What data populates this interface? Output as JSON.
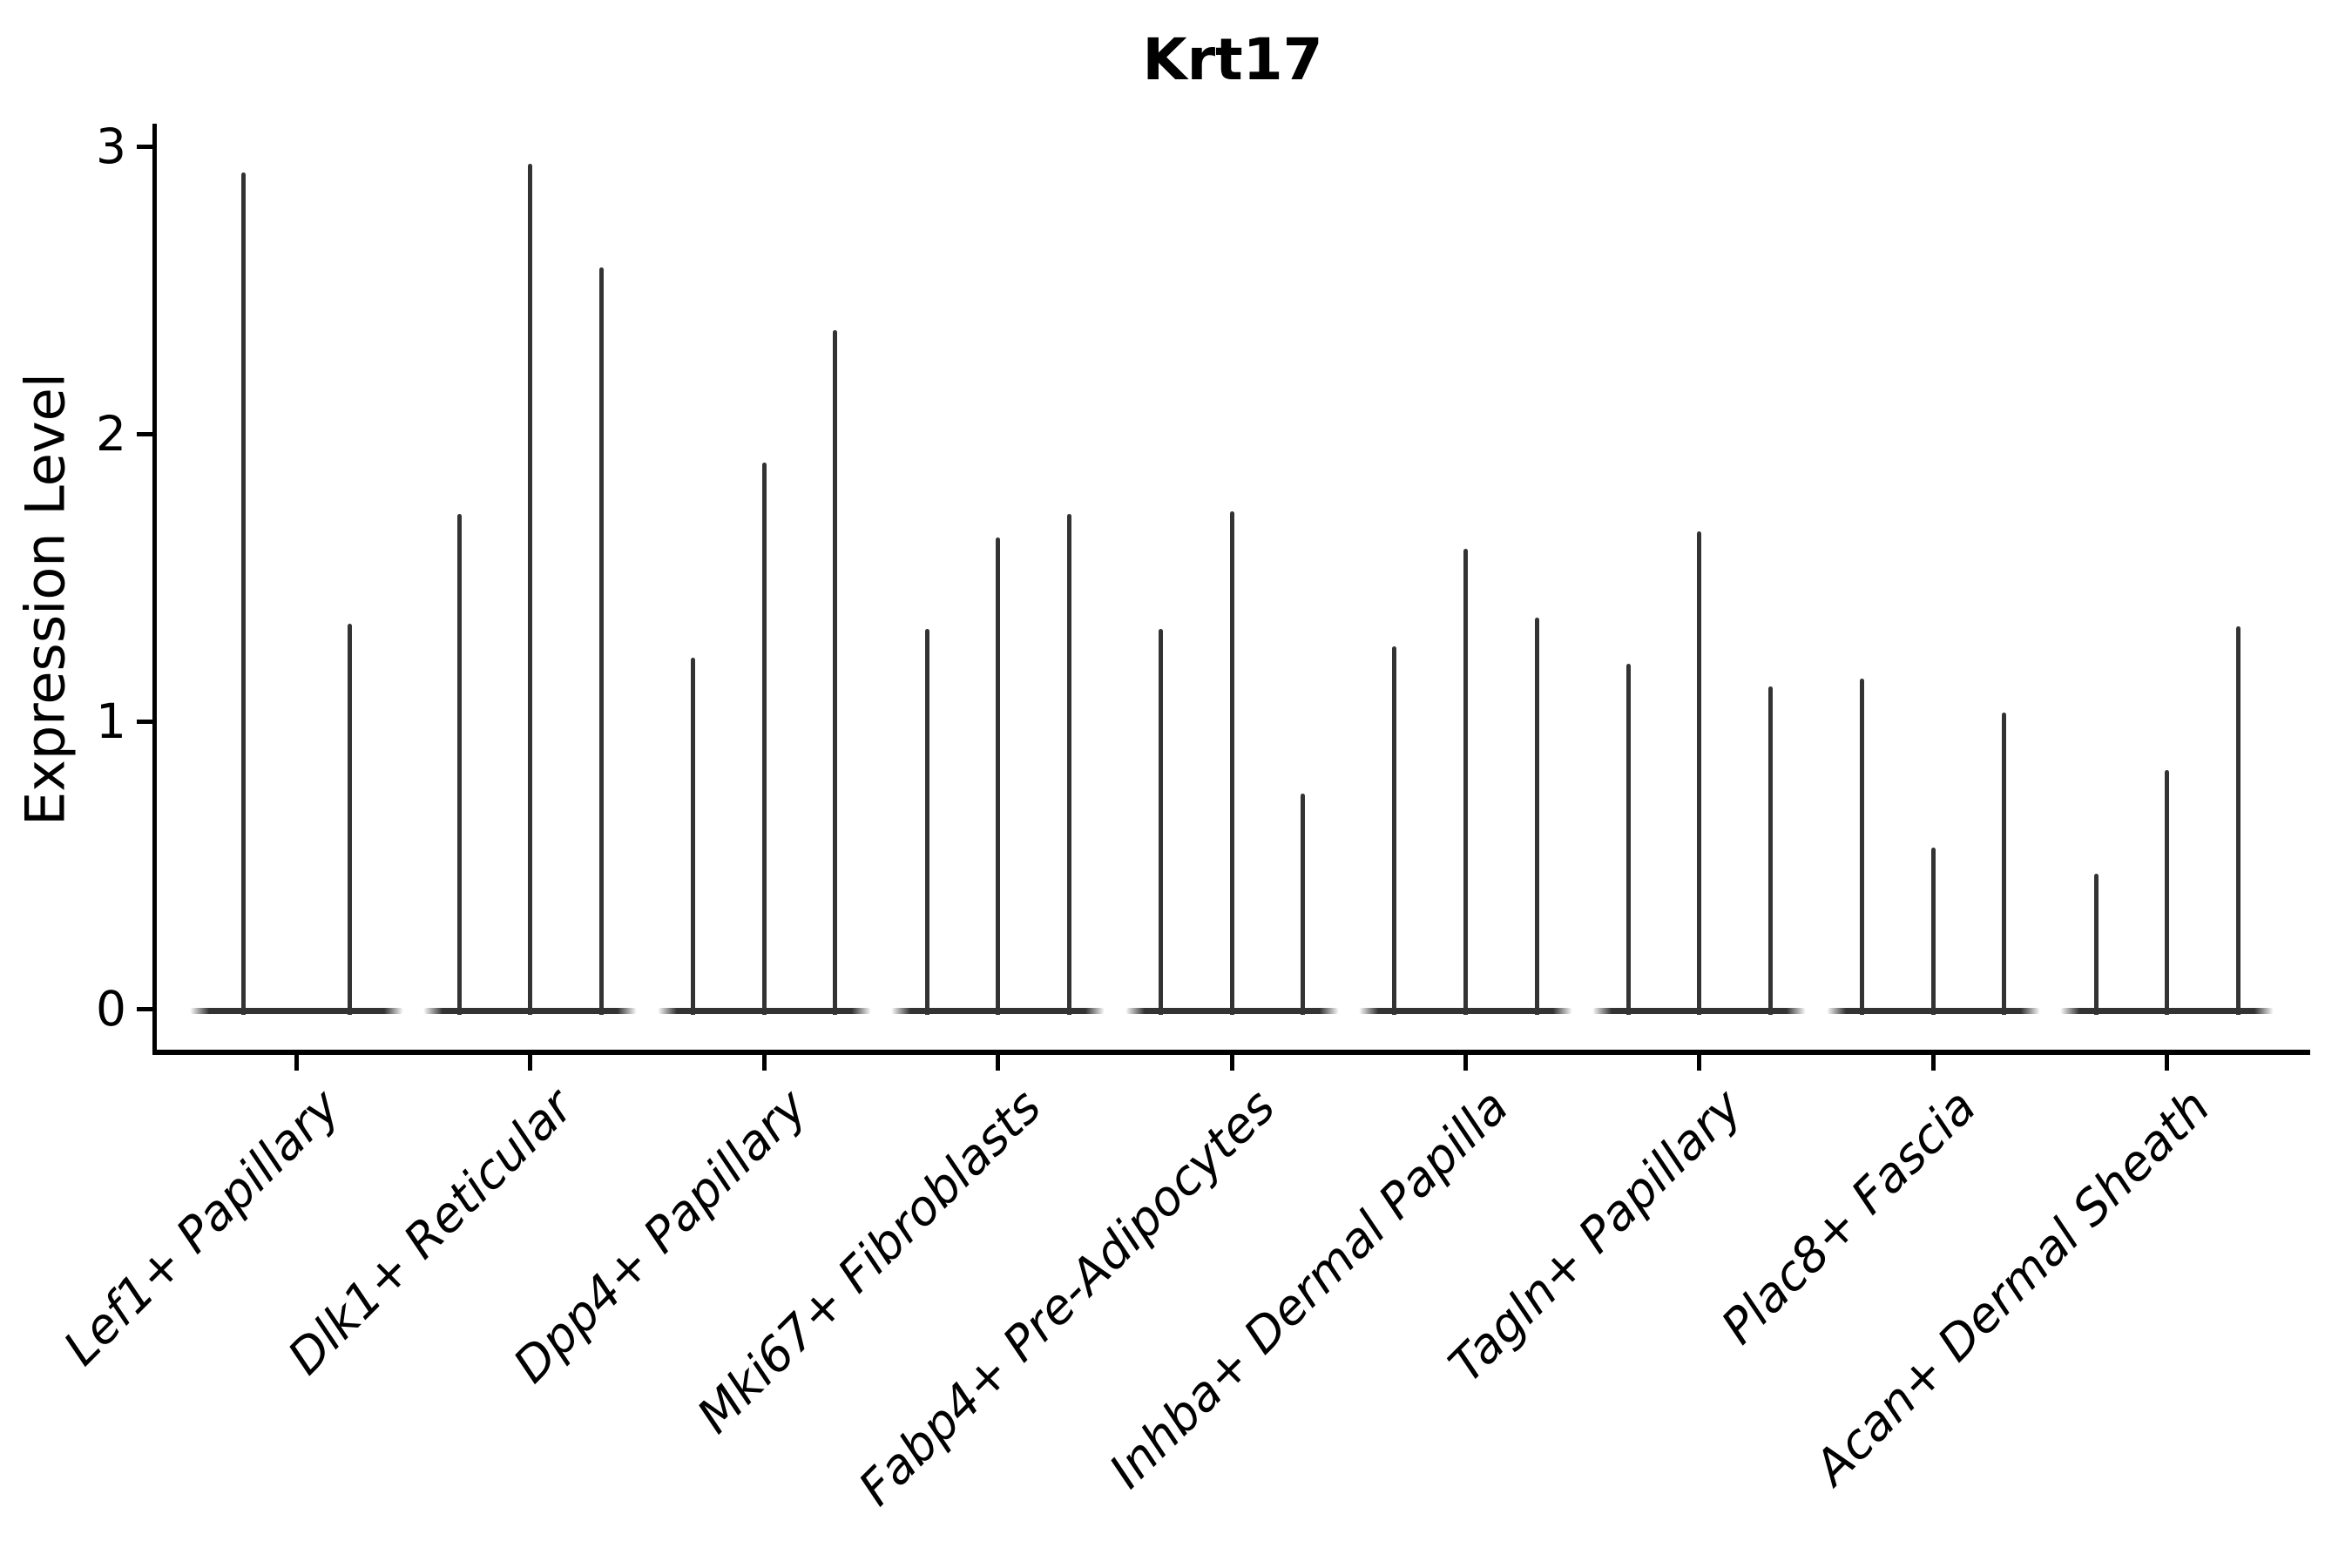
{
  "title": "Krt17",
  "y_axis": {
    "label": "Expression Level",
    "tick_labels": [
      "0",
      "1",
      "2",
      "3"
    ]
  },
  "colors": {
    "violin": "#333333",
    "axis": "#000000",
    "background": "#ffffff"
  },
  "chart_data": {
    "type": "violin",
    "title": "Krt17",
    "xlabel": "",
    "ylabel": "Expression Level",
    "grid": false,
    "legend": "none",
    "yticks": [
      0,
      1,
      2,
      3
    ],
    "ylim": [
      -0.16,
      3.08
    ],
    "note": "Collapsed single-cell violins: nearly all mass at 0, thin spikes reach the per-group maximum expression value",
    "categories": [
      "Lef1+ Papillary",
      "Dlk1+ Reticular",
      "Dpp4+ Papillary",
      "Mki67+ Fibroblasts",
      "Fabp4+ Pre-Adipocytes",
      "Inhba+ Dermal Papilla",
      "Tagln+ Papillary",
      "Plac8+ Fascia",
      "Acan+ Dermal Sheath"
    ],
    "series": [
      {
        "category": "Lef1+ Papillary",
        "violin_max_values": [
          2.91,
          1.34
        ]
      },
      {
        "category": "Dlk1+ Reticular",
        "violin_max_values": [
          1.72,
          2.94,
          2.58
        ]
      },
      {
        "category": "Dpp4+ Papillary",
        "violin_max_values": [
          1.22,
          1.9,
          2.36
        ]
      },
      {
        "category": "Mki67+ Fibroblasts",
        "violin_max_values": [
          1.32,
          1.64,
          1.72
        ]
      },
      {
        "category": "Fabp4+ Pre-Adipocytes",
        "violin_max_values": [
          1.32,
          1.73,
          0.75
        ]
      },
      {
        "category": "Inhba+ Dermal Papilla",
        "violin_max_values": [
          1.26,
          1.6,
          1.36
        ]
      },
      {
        "category": "Tagln+ Papillary",
        "violin_max_values": [
          1.2,
          1.66,
          1.12
        ]
      },
      {
        "category": "Plac8+ Fascia",
        "violin_max_values": [
          1.15,
          0.56,
          1.03
        ]
      },
      {
        "category": "Acan+ Dermal Sheath",
        "violin_max_values": [
          0.47,
          0.83,
          1.33
        ]
      }
    ]
  }
}
